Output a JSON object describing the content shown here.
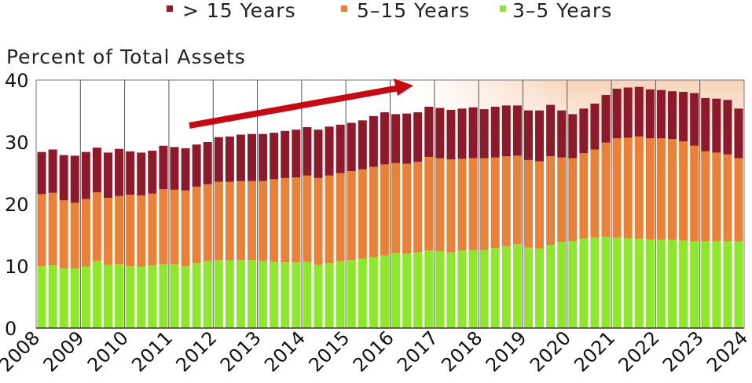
{
  "chart_data": {
    "type": "bar",
    "stacked": true,
    "title": "",
    "ylabel": "Percent of Total Assets",
    "xlabel": "",
    "ylim": [
      0,
      40
    ],
    "yticks": [
      0,
      10,
      20,
      30,
      40
    ],
    "xticks": [
      "2008",
      "2009",
      "2010",
      "2011",
      "2012",
      "2013",
      "2014",
      "2015",
      "2016",
      "2017",
      "2018",
      "2019",
      "2020",
      "2021",
      "2022",
      "2023",
      "2024"
    ],
    "grid": "vertical-years",
    "legend_position": "top",
    "annotation": "upward-arrow",
    "colors": {
      "gt15": "#8b1a2b",
      "five_to_15": "#e8813a",
      "three_to_5": "#8ee62e",
      "arrow": "#c40a12",
      "shade": "#f7cfb3"
    },
    "series": [
      {
        "name": "> 15 Years",
        "key": "gt15",
        "values": [
          6.8,
          7.0,
          7.3,
          7.6,
          7.6,
          7.2,
          7.3,
          7.6,
          7.0,
          6.9,
          6.9,
          7.0,
          6.9,
          6.8,
          6.8,
          6.8,
          7.2,
          7.3,
          7.5,
          7.6,
          7.6,
          7.5,
          7.6,
          7.7,
          7.8,
          7.8,
          7.9,
          7.8,
          7.8,
          7.9,
          8.2,
          8.4,
          7.9,
          8.1,
          8.0,
          8.1,
          8.1,
          8.0,
          8.1,
          8.2,
          7.9,
          8.2,
          8.2,
          8.1,
          8.0,
          8.2,
          8.3,
          7.6,
          7.1,
          7.2,
          7.4,
          7.7,
          8.0,
          8.1,
          8.0,
          7.9,
          7.8,
          7.7,
          8.0,
          8.5,
          8.6,
          8.7,
          8.8,
          8.0
        ],
        "note_rest": "values continue below"
      },
      {
        "name": "5–15 Years",
        "key": "five_to_15",
        "values": [
          11.6,
          11.7,
          11.0,
          10.6,
          10.9,
          11.1,
          10.8,
          11.0,
          11.5,
          11.5,
          11.6,
          12.1,
          12.0,
          12.2,
          12.3,
          12.4,
          12.6,
          12.7,
          12.7,
          12.7,
          12.9,
          13.3,
          13.6,
          13.7,
          13.9,
          14.0,
          14.1,
          14.2,
          14.3,
          14.4,
          14.6,
          14.7,
          14.5,
          14.5,
          14.6,
          15.1,
          15.0,
          15.0,
          14.8,
          14.8,
          14.8,
          14.6,
          14.5,
          14.3,
          14.1,
          14.1,
          14.3,
          13.6,
          13.4,
          13.8,
          14.2,
          15.2,
          16.0,
          16.2,
          16.5,
          16.3,
          16.4,
          16.3,
          16.0,
          15.4,
          14.5,
          14.3,
          14.0,
          13.4
        ]
      },
      {
        "name": "3–5 Years",
        "key": "three_to_5",
        "values": [
          10.0,
          10.1,
          9.6,
          9.6,
          9.9,
          10.8,
          10.2,
          10.3,
          10.0,
          9.9,
          10.1,
          10.3,
          10.3,
          10.0,
          10.5,
          10.8,
          11.0,
          10.9,
          11.0,
          11.0,
          10.8,
          10.7,
          10.6,
          10.6,
          10.7,
          10.2,
          10.5,
          10.8,
          11.0,
          11.2,
          11.4,
          11.7,
          12.1,
          12.0,
          12.2,
          12.5,
          12.4,
          12.2,
          12.5,
          12.6,
          12.6,
          12.9,
          13.2,
          13.5,
          13.0,
          12.8,
          13.4,
          13.9,
          14.0,
          14.4,
          14.6,
          14.7,
          14.6,
          14.5,
          14.4,
          14.3,
          14.2,
          14.2,
          14.1,
          14.0,
          14.0,
          14.0,
          14.0,
          14.0
        ]
      }
    ]
  }
}
